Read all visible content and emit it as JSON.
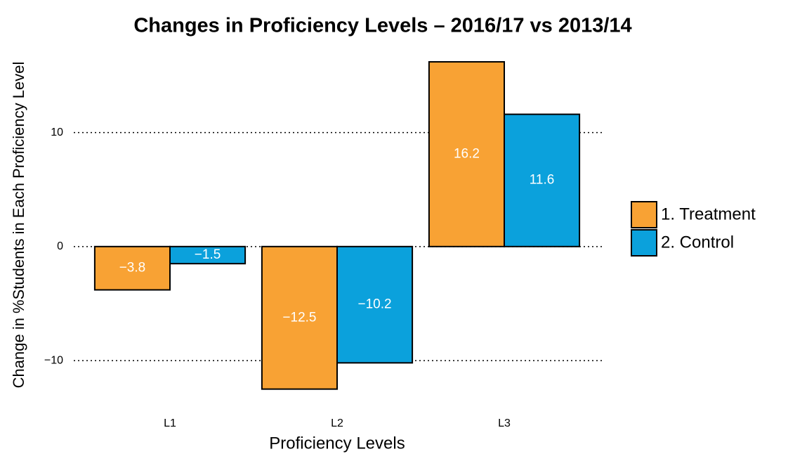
{
  "chart_data": {
    "type": "bar",
    "title": "Changes in Proficiency Levels – 2016/17 vs 2013/14",
    "x_label": "Proficiency Levels",
    "y_label": "Change in %Students in Each Proficiency Level",
    "categories": [
      "L1",
      "L2",
      "L3"
    ],
    "series": [
      {
        "name": "1. Treatment",
        "color": "#f8a234",
        "values": [
          -3.8,
          -12.5,
          16.2
        ],
        "value_labels": [
          "−3.8",
          "−12.5",
          "16.2"
        ]
      },
      {
        "name": "2. Control",
        "color": "#0ba1dc",
        "values": [
          -1.5,
          -10.2,
          11.6
        ],
        "value_labels": [
          "−1.5",
          "−10.2",
          "11.6"
        ]
      }
    ],
    "ylim": [
      -13.2,
      17.0
    ],
    "yticks": [
      {
        "value": -10,
        "label": "−10"
      },
      0,
      10
    ],
    "grid": true,
    "legend": "right"
  }
}
